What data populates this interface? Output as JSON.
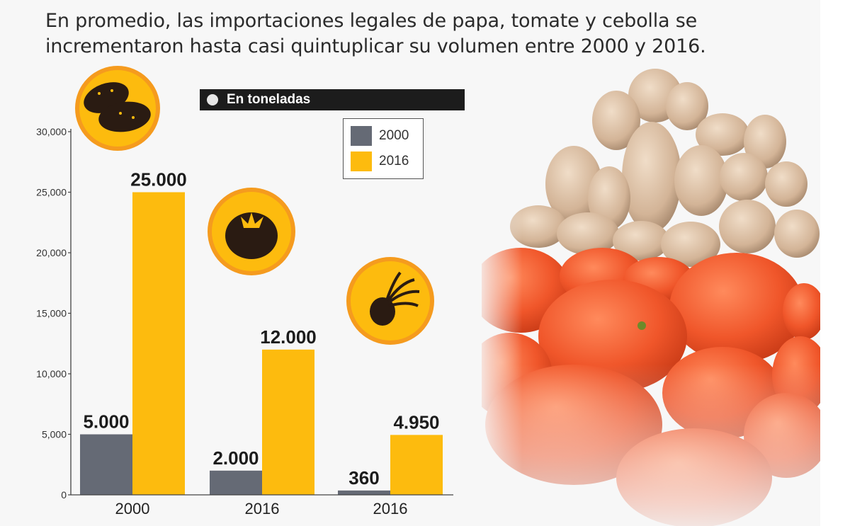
{
  "header": {
    "title": "En promedio, las importaciones legales de papa, tomate y cebolla se incrementaron hasta casi quintuplicar su volumen entre 2000 y 2016."
  },
  "unit_label": "En toneladas",
  "legend": {
    "items": [
      {
        "label": "2000",
        "color": "#656a75"
      },
      {
        "label": "2016",
        "color": "#fdbb0e"
      }
    ]
  },
  "icons": [
    "potato-icon",
    "tomato-icon",
    "onion-icon"
  ],
  "photo": {
    "icon": "potato-tomato-photo"
  },
  "chart_data": {
    "type": "bar",
    "categories": [
      "2000",
      "2016",
      "2016"
    ],
    "series": [
      {
        "name": "2000",
        "values": [
          5000,
          2000,
          360
        ],
        "labels": [
          "5.000",
          "2.000",
          "360"
        ],
        "color": "#656a75"
      },
      {
        "name": "2016",
        "values": [
          25000,
          12000,
          4950
        ],
        "labels": [
          "25.000",
          "12.000",
          "4.950"
        ],
        "color": "#fdbb0e"
      }
    ],
    "yticks": [
      0,
      5000,
      10000,
      15000,
      20000,
      25000,
      30000
    ],
    "ytick_labels": [
      "0",
      "5,000",
      "10,000",
      "15,000",
      "20,000",
      "25,000",
      "30,000"
    ],
    "ylim": [
      0,
      30000
    ],
    "grid": false,
    "legend_position": "top-center"
  }
}
